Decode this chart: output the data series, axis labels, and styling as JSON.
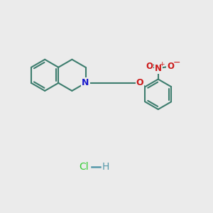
{
  "bg_color": "#ebebeb",
  "bond_color": "#3d7d6e",
  "bond_width": 1.5,
  "N_color": "#1a1acc",
  "O_color": "#cc1a1a",
  "Cl_color": "#33cc33",
  "H_color": "#5599aa",
  "N_label": "N",
  "O_label": "O",
  "nitro_N_label": "N",
  "nitro_O1_label": "O",
  "nitro_O2_label": "O",
  "minus_label": "−",
  "plus_label": "+",
  "HCl_Cl": "Cl",
  "HCl_H": "H",
  "figsize": [
    3.0,
    3.0
  ],
  "dpi": 100
}
